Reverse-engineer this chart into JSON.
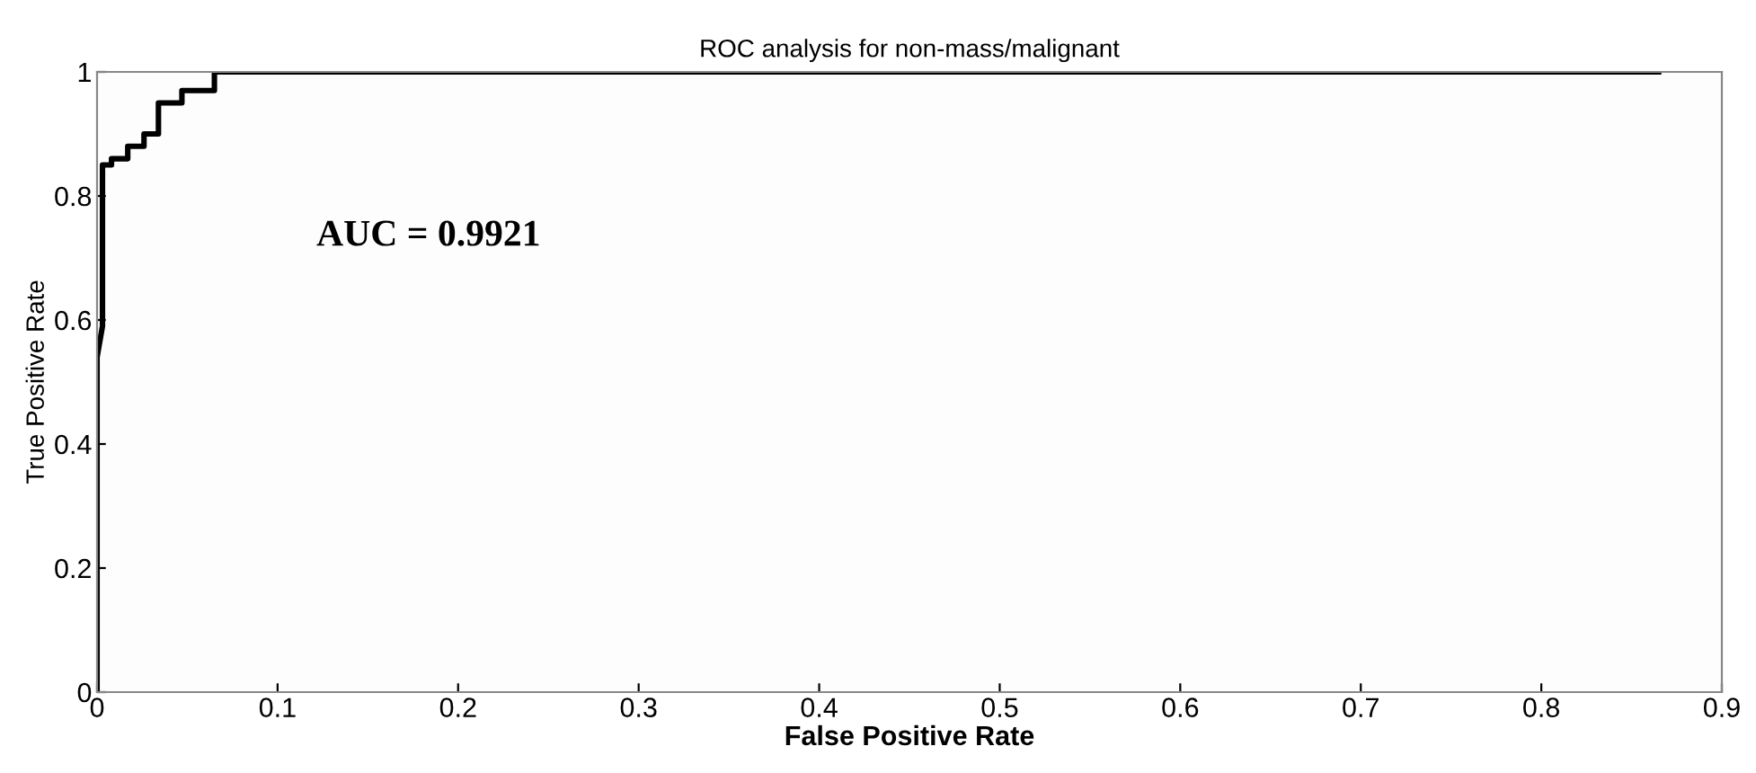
{
  "chart_data": {
    "type": "line",
    "title": "ROC analysis for non-mass/malignant",
    "xlabel": "False Positive Rate",
    "ylabel": "True Positive Rate",
    "series": [
      {
        "color": "#000000",
        "x": [
          0,
          0,
          0.003,
          0.003,
          0.003,
          0.008,
          0.008,
          0.017,
          0.017,
          0.026,
          0.026,
          0.034,
          0.034,
          0.047,
          0.047,
          0.065,
          0.065,
          0.865
        ],
        "values": [
          0,
          0.54,
          0.59,
          0.84,
          0.85,
          0.85,
          0.86,
          0.86,
          0.88,
          0.88,
          0.9,
          0.9,
          0.95,
          0.95,
          0.97,
          0.97,
          1,
          1
        ]
      }
    ],
    "annotations": [
      "AUC = 0.9921"
    ],
    "xlim": [
      0,
      0.9
    ],
    "xticks": [
      0,
      0.1,
      0.2,
      0.3,
      0.4,
      0.5,
      0.6,
      0.7,
      0.8,
      0.9
    ],
    "ylim": [
      0,
      1
    ],
    "yticks": [
      0,
      0.2,
      0.4,
      0.6,
      0.8,
      1
    ],
    "grid": false,
    "legend": false,
    "marker": "none",
    "line_style": "solid"
  }
}
